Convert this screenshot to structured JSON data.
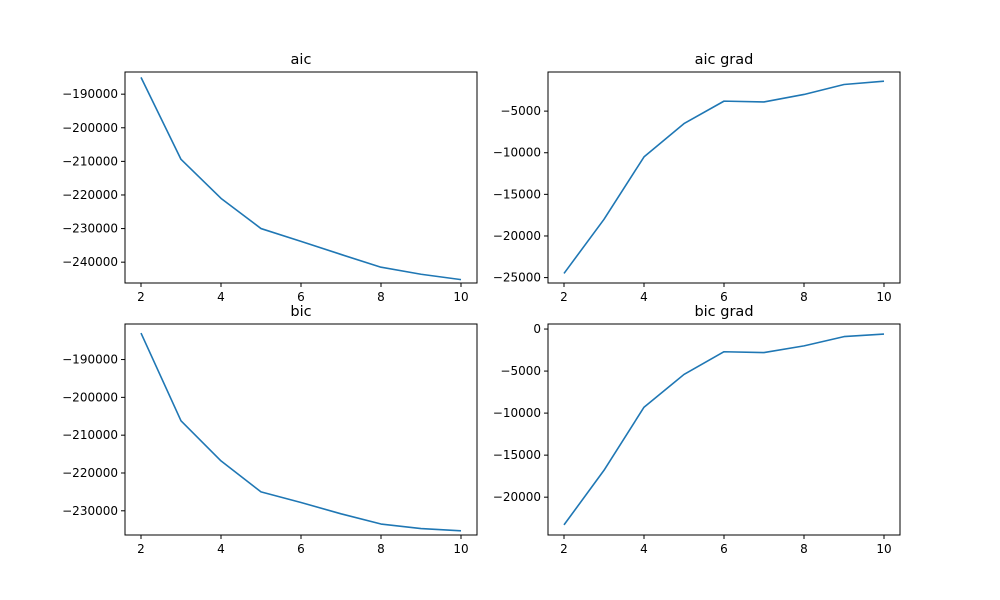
{
  "chart_data": [
    {
      "type": "line",
      "title": "aic",
      "x": [
        2,
        3,
        4,
        5,
        6,
        7,
        8,
        9,
        10
      ],
      "series": [
        {
          "values": [
            -185000,
            -209400,
            -221000,
            -230000,
            -233800,
            -237700,
            -241500,
            -243600,
            -245200
          ],
          "color": "#1f77b4"
        }
      ],
      "xlim": [
        1.6,
        10.4
      ],
      "ylim": [
        -246200,
        -183400
      ],
      "xticks": [
        2,
        4,
        6,
        8,
        10
      ],
      "yticks": [
        -240000,
        -230000,
        -220000,
        -210000,
        -200000,
        -190000
      ],
      "grid": false
    },
    {
      "type": "line",
      "title": "aic grad",
      "x": [
        2,
        3,
        4,
        5,
        6,
        7,
        8,
        9,
        10
      ],
      "series": [
        {
          "values": [
            -24500,
            -18000,
            -10500,
            -6500,
            -3800,
            -3900,
            -3000,
            -1800,
            -1400
          ],
          "color": "#1f77b4"
        }
      ],
      "xlim": [
        1.6,
        10.4
      ],
      "ylim": [
        -25650,
        -300
      ],
      "xticks": [
        2,
        4,
        6,
        8,
        10
      ],
      "yticks": [
        -25000,
        -20000,
        -15000,
        -10000,
        -5000
      ],
      "grid": false
    },
    {
      "type": "line",
      "title": "bic",
      "x": [
        2,
        3,
        4,
        5,
        6,
        7,
        8,
        9,
        10
      ],
      "series": [
        {
          "values": [
            -183000,
            -206200,
            -216800,
            -225000,
            -227800,
            -230800,
            -233500,
            -234700,
            -235300
          ],
          "color": "#1f77b4"
        }
      ],
      "xlim": [
        1.6,
        10.4
      ],
      "ylim": [
        -236400,
        -180600
      ],
      "xticks": [
        2,
        4,
        6,
        8,
        10
      ],
      "yticks": [
        -230000,
        -220000,
        -210000,
        -200000,
        -190000
      ],
      "grid": false
    },
    {
      "type": "line",
      "title": "bic grad",
      "x": [
        2,
        3,
        4,
        5,
        6,
        7,
        8,
        9,
        10
      ],
      "series": [
        {
          "values": [
            -23300,
            -16800,
            -9300,
            -5400,
            -2700,
            -2800,
            -2000,
            -900,
            -600
          ],
          "color": "#1f77b4"
        }
      ],
      "xlim": [
        1.6,
        10.4
      ],
      "ylim": [
        -24500,
        600
      ],
      "xticks": [
        2,
        4,
        6,
        8,
        10
      ],
      "yticks": [
        -20000,
        -15000,
        -10000,
        -5000,
        0
      ],
      "grid": false
    }
  ]
}
